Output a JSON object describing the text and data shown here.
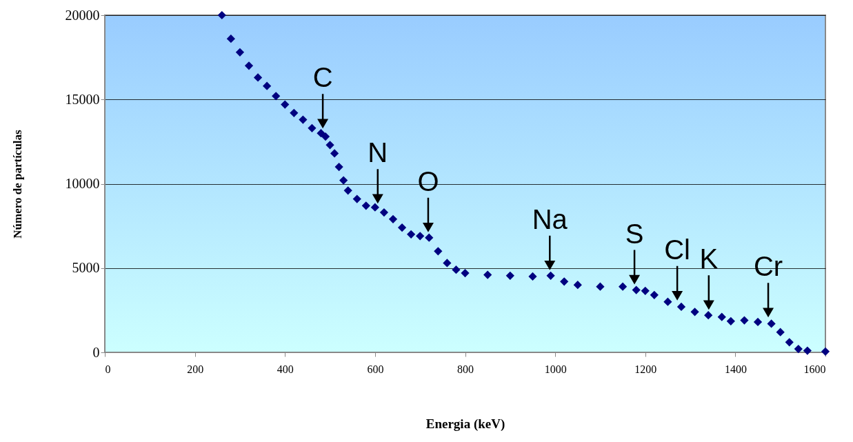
{
  "chart_data": {
    "type": "scatter",
    "xlabel": "Energia (keV)",
    "ylabel": "Número de partículas",
    "x": [
      260,
      280,
      300,
      320,
      340,
      360,
      380,
      400,
      420,
      440,
      460,
      480,
      490,
      500,
      510,
      520,
      530,
      540,
      560,
      580,
      600,
      620,
      640,
      660,
      680,
      700,
      720,
      740,
      760,
      780,
      800,
      850,
      900,
      950,
      990,
      1020,
      1050,
      1100,
      1150,
      1180,
      1200,
      1220,
      1250,
      1280,
      1310,
      1340,
      1370,
      1390,
      1420,
      1450,
      1480,
      1500,
      1520,
      1540,
      1560,
      1600
    ],
    "series": [
      {
        "color": "#000080",
        "values": [
          20000,
          18600,
          17800,
          17000,
          16300,
          15800,
          15200,
          14700,
          14200,
          13800,
          13300,
          13000,
          12800,
          12300,
          11800,
          11000,
          10200,
          9600,
          9100,
          8700,
          8600,
          8300,
          7900,
          7400,
          7000,
          6900,
          6800,
          6000,
          5300,
          4900,
          4700,
          4600,
          4550,
          4500,
          4550,
          4200,
          4000,
          3900,
          3900,
          3700,
          3650,
          3400,
          3000,
          2700,
          2400,
          2200,
          2100,
          1850,
          1900,
          1800,
          1700,
          1200,
          600,
          200,
          100,
          50
        ]
      }
    ],
    "marker": "diamond",
    "xlim": [
      0,
      1600
    ],
    "xticks": [
      0,
      200,
      400,
      600,
      800,
      1000,
      1200,
      1400,
      1600
    ],
    "ylim": [
      0,
      20000
    ],
    "yticks": [
      0,
      5000,
      10000,
      15000,
      20000
    ],
    "grid": "y",
    "annotations": [
      {
        "text": "C",
        "x": 484,
        "y": 12950
      },
      {
        "text": "N",
        "x": 606,
        "y": 8500
      },
      {
        "text": "O",
        "x": 718,
        "y": 6800
      },
      {
        "text": "Na",
        "x": 988,
        "y": 4550
      },
      {
        "text": "S",
        "x": 1176,
        "y": 3700
      },
      {
        "text": "Cl",
        "x": 1271,
        "y": 2750
      },
      {
        "text": "K",
        "x": 1341,
        "y": 2200
      },
      {
        "text": "Cr",
        "x": 1473,
        "y": 1750
      }
    ]
  }
}
